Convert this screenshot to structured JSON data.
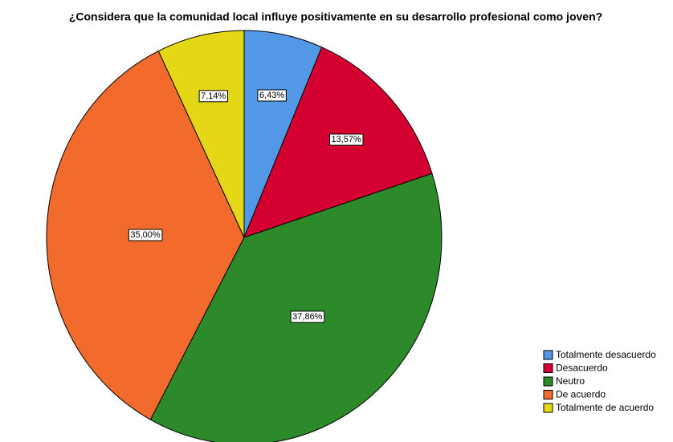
{
  "chart_data": {
    "type": "pie",
    "title": "¿Considera que la comunidad local influye positivamente en su desarrollo profesional como joven?",
    "categories": [
      "Totalmente desacuerdo",
      "Desacuerdo",
      "Neutro",
      "De acuerdo",
      "Totalmente de acuerdo"
    ],
    "values": [
      6.43,
      13.57,
      37.86,
      35.0,
      7.14
    ],
    "value_labels": [
      "6,43%",
      "13,57%",
      "37,86%",
      "35,00%",
      "7,14%"
    ],
    "colors": [
      "#5298e6",
      "#d4002f",
      "#2c8a2a",
      "#f26a2c",
      "#e4d715"
    ],
    "legend": "bottom-right"
  }
}
